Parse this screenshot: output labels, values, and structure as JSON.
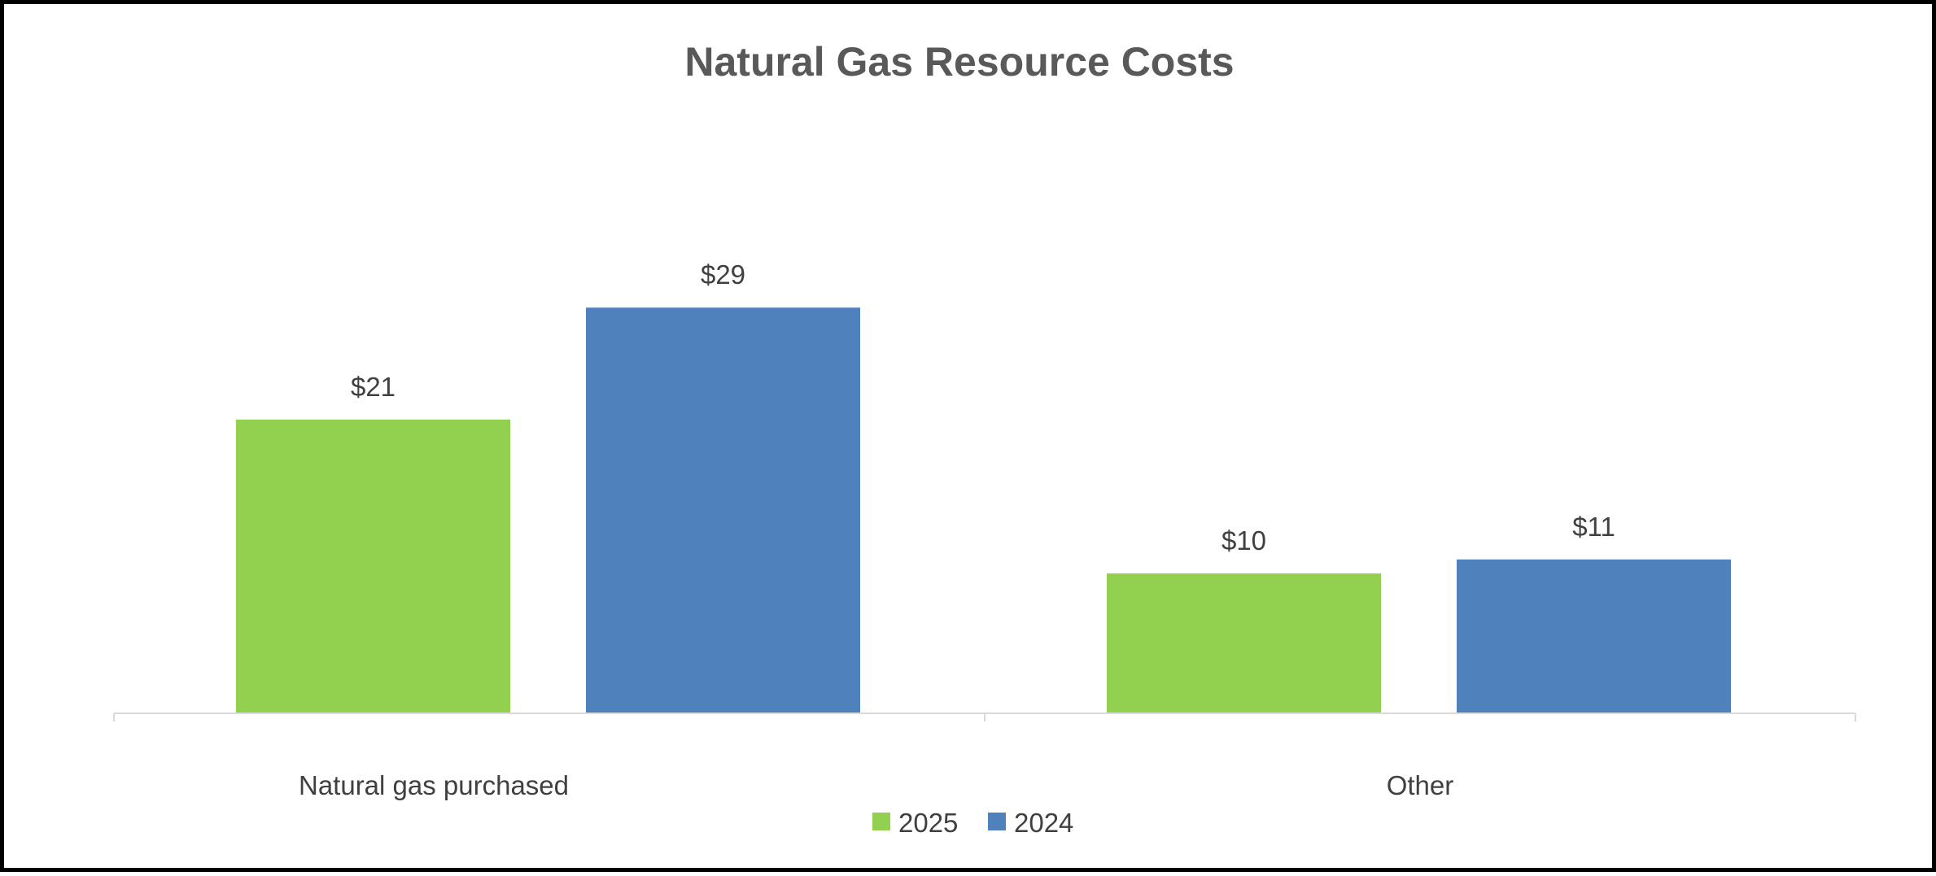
{
  "chart_data": {
    "type": "bar",
    "title": "Natural Gas Resource Costs",
    "xlabel": "",
    "ylabel": "",
    "categories": [
      "Natural gas purchased",
      "Other"
    ],
    "series": [
      {
        "name": "2025",
        "color": "#92D050",
        "values": [
          21,
          10
        ],
        "labels": [
          "$21",
          "$10"
        ]
      },
      {
        "name": "2024",
        "color": "#4F81BD",
        "values": [
          29,
          11
        ],
        "labels": [
          "$29",
          "$11"
        ]
      }
    ],
    "ylim": [
      0,
      32
    ],
    "grid": false,
    "legend": "bottom-center"
  }
}
